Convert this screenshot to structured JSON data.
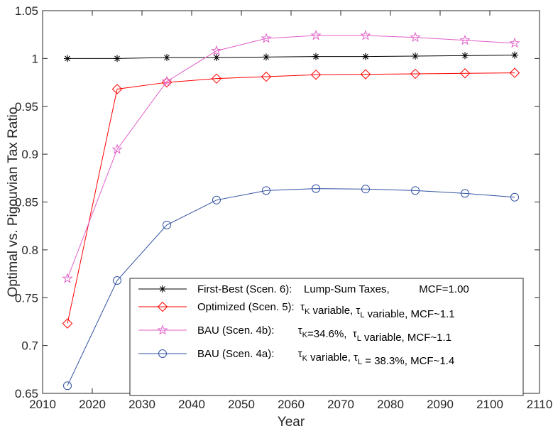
{
  "chart_data": {
    "type": "line",
    "title": "",
    "xlabel": "Year",
    "ylabel": "Optimal vs. Pigouvian Tax Ratio",
    "xlim": [
      2010,
      2110
    ],
    "ylim": [
      0.65,
      1.05
    ],
    "xticks": [
      2010,
      2020,
      2030,
      2040,
      2050,
      2060,
      2070,
      2080,
      2090,
      2100,
      2110
    ],
    "yticks": [
      0.65,
      0.7,
      0.75,
      0.8,
      0.85,
      0.9,
      0.95,
      1,
      1.05
    ],
    "ytick_labels": [
      "0.65",
      "0.7",
      "0.75",
      "0.8",
      "0.85",
      "0.9",
      "0.95",
      "1",
      "1.05"
    ],
    "grid": false,
    "legend_position": "bottom-right",
    "x": [
      2015,
      2025,
      2035,
      2045,
      2055,
      2065,
      2075,
      2085,
      2095,
      2105
    ],
    "series": [
      {
        "name": "First-Best (Scen. 6):",
        "legend_parts": [
          {
            "text": "First-Best (Scen. 6):    Lump-Sum Taxes,          MCF=1.00"
          }
        ],
        "color": "#000000",
        "marker": "asterisk",
        "values": [
          1.0,
          1.0,
          1.001,
          1.001,
          1.0015,
          1.002,
          1.002,
          1.0025,
          1.003,
          1.0035
        ]
      },
      {
        "name": "Optimized (Scen. 5):",
        "legend_parts": [
          {
            "text": "Optimized (Scen. 5):  "
          },
          {
            "text": "τ"
          },
          {
            "sub": "K"
          },
          {
            "text": " variable, "
          },
          {
            "text": "τ"
          },
          {
            "sub": "L"
          },
          {
            "text": " variable, MCF~1.1"
          }
        ],
        "color": "#ff0000",
        "marker": "diamond",
        "values": [
          0.723,
          0.968,
          0.975,
          0.979,
          0.981,
          0.983,
          0.9835,
          0.984,
          0.9845,
          0.985
        ]
      },
      {
        "name": "BAU (Scen. 4b):",
        "legend_parts": [
          {
            "text": "BAU (Scen. 4b):        "
          },
          {
            "text": "τ"
          },
          {
            "sub": "K"
          },
          {
            "text": "=34.6%,  "
          },
          {
            "text": "τ"
          },
          {
            "sub": "L"
          },
          {
            "text": " variable, MCF~1.1"
          }
        ],
        "color": "#e060c8",
        "marker": "star",
        "values": [
          0.77,
          0.905,
          0.976,
          1.008,
          1.021,
          1.024,
          1.024,
          1.022,
          1.019,
          1.016
        ]
      },
      {
        "name": "BAU (Scen. 4a):",
        "legend_parts": [
          {
            "text": "BAU (Scen. 4a):        "
          },
          {
            "text": "τ"
          },
          {
            "sub": "K"
          },
          {
            "text": " variable, "
          },
          {
            "text": "τ"
          },
          {
            "sub": "L"
          },
          {
            "text": " = 38.3%, MCF~1.4"
          }
        ],
        "color": "#3050a0",
        "marker": "circle",
        "values": [
          0.658,
          0.768,
          0.826,
          0.852,
          0.862,
          0.864,
          0.8635,
          0.862,
          0.859,
          0.855
        ]
      }
    ]
  }
}
